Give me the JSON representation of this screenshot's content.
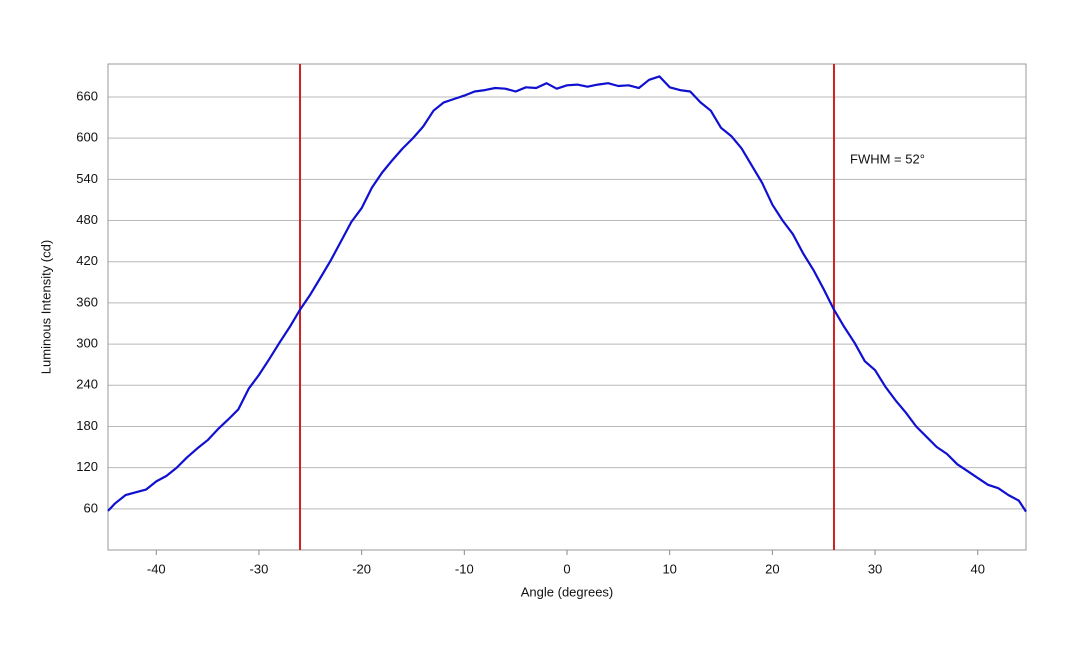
{
  "chart_data": {
    "type": "line",
    "xlabel": "Angle (degrees)",
    "ylabel": "Luminous Intensity (cd)",
    "annotation": "FWHM = 52°",
    "x": [
      -44.7,
      -44,
      -43,
      -42,
      -41,
      -40,
      -39,
      -38,
      -37,
      -36,
      -35,
      -34,
      -33,
      -32,
      -31,
      -30,
      -29,
      -28,
      -27,
      -26,
      -25,
      -24,
      -23,
      -22,
      -21,
      -20,
      -19,
      -18,
      -17,
      -16,
      -15,
      -14,
      -13,
      -12,
      -11,
      -10,
      -9,
      -8,
      -7,
      -6,
      -5,
      -4,
      -3,
      -2,
      -1,
      0,
      1,
      2,
      3,
      4,
      5,
      6,
      7,
      8,
      9,
      10,
      11,
      12,
      13,
      14,
      15,
      16,
      17,
      18,
      19,
      20,
      21,
      22,
      23,
      24,
      25,
      26,
      27,
      28,
      29,
      30,
      31,
      32,
      33,
      34,
      35,
      36,
      37,
      38,
      39,
      40,
      41,
      42,
      43,
      44,
      44.7
    ],
    "series": [
      {
        "color": "#1010d0",
        "values": [
          57,
          68,
          80,
          84,
          88,
          100,
          108,
          120,
          135,
          148,
          160,
          176,
          190,
          205,
          235,
          255,
          278,
          302,
          325,
          350,
          372,
          397,
          422,
          450,
          478,
          498,
          528,
          550,
          568,
          585,
          600,
          617,
          640,
          652,
          657,
          662,
          668,
          670,
          673,
          672,
          668,
          674,
          673,
          680,
          672,
          677,
          678,
          675,
          678,
          680,
          676,
          677,
          673,
          685,
          690,
          674,
          670,
          668,
          652,
          640,
          615,
          603,
          585,
          560,
          535,
          503,
          480,
          460,
          432,
          408,
          380,
          350,
          325,
          302,
          275,
          262,
          238,
          218,
          200,
          180,
          165,
          150,
          140,
          125,
          115,
          105,
          95,
          90,
          80,
          72,
          56
        ]
      }
    ],
    "vlines": [
      -26,
      26
    ],
    "vline_color": "#cc2222",
    "xlim": [
      -44.7,
      44.7
    ],
    "xticks": [
      -40,
      -30,
      -20,
      -10,
      0,
      10,
      20,
      30,
      40
    ],
    "ylim": [
      0,
      708
    ],
    "yticks": [
      60,
      120,
      180,
      240,
      300,
      360,
      420,
      480,
      540,
      600,
      660
    ],
    "grid": true
  }
}
